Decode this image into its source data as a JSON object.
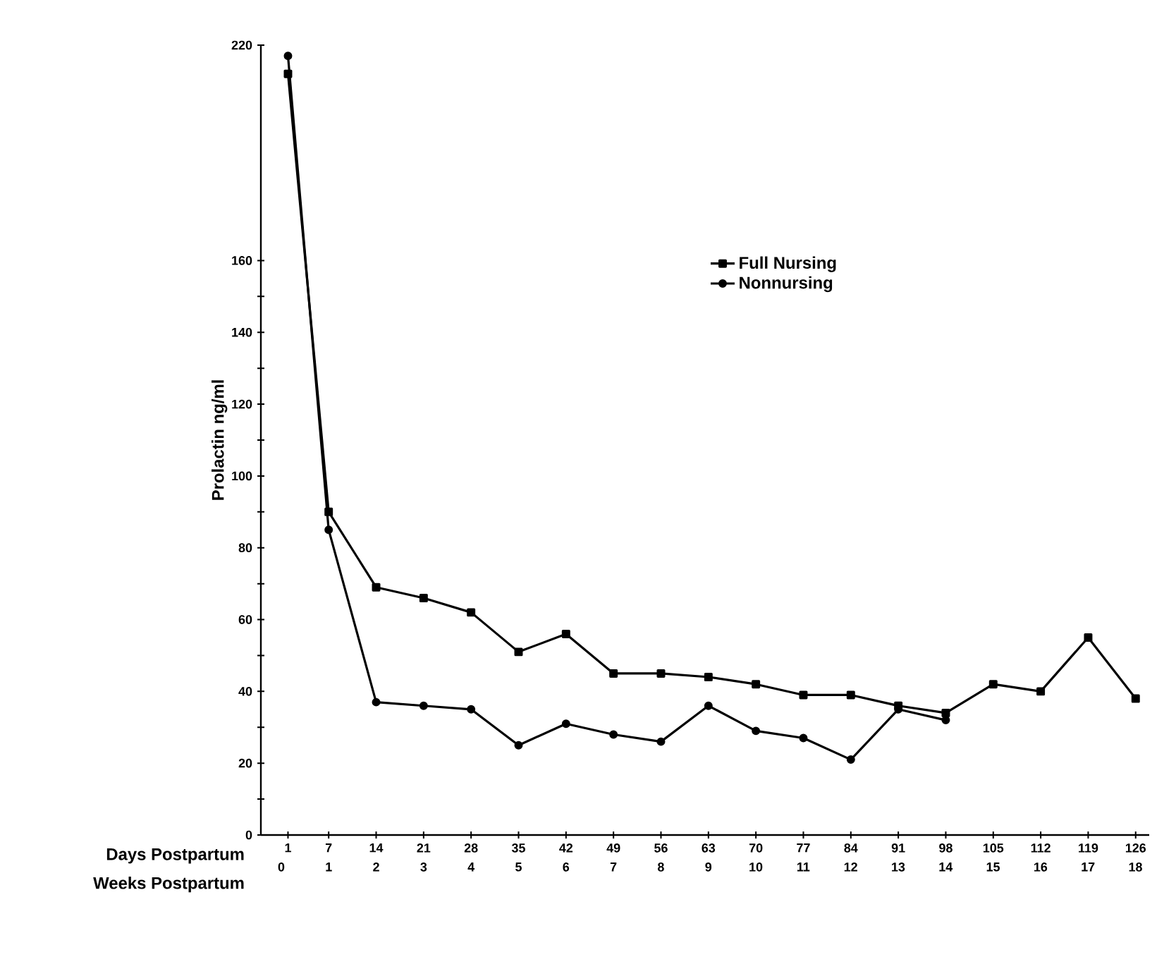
{
  "chart_data": {
    "type": "line",
    "xlabel": "Days Postpartum",
    "x2label": "Weeks Postpartum",
    "ylabel": "Prolactin    ng/ml",
    "x": [
      1,
      7,
      14,
      21,
      28,
      35,
      42,
      49,
      56,
      63,
      70,
      77,
      84,
      91,
      98,
      105,
      112,
      119,
      126
    ],
    "xlim": [
      -3,
      128
    ],
    "xticks": [
      1,
      7,
      14,
      21,
      28,
      35,
      42,
      49,
      56,
      63,
      70,
      77,
      84,
      91,
      98,
      105,
      112,
      119,
      126
    ],
    "x2lim": [
      -0.43,
      18.29
    ],
    "x2ticks": [
      0,
      1,
      2,
      3,
      4,
      5,
      6,
      7,
      8,
      9,
      10,
      11,
      12,
      13,
      14,
      15,
      16,
      17,
      18
    ],
    "ylim": [
      0,
      220
    ],
    "yticks": [
      0,
      {
        "value": 10,
        "label": null
      },
      20,
      {
        "value": 30,
        "label": null
      },
      40,
      {
        "value": 50,
        "label": null
      },
      60,
      {
        "value": 70,
        "label": null
      },
      80,
      {
        "value": 90,
        "label": null
      },
      100,
      {
        "value": 110,
        "label": null
      },
      120,
      {
        "value": 130,
        "label": null
      },
      140,
      {
        "value": 150,
        "label": null
      },
      160,
      220
    ],
    "legend": "top right",
    "series": [
      {
        "name": "Full Nursing",
        "color": "#000000",
        "marker": "square",
        "values": [
          212,
          90,
          69,
          66,
          62,
          51,
          56,
          45,
          45,
          44,
          42,
          39,
          39,
          36,
          34,
          42,
          40,
          55,
          38
        ]
      },
      {
        "name": "Nonnursing",
        "color": "#000000",
        "marker": "circle",
        "values": [
          217,
          85,
          37,
          36,
          35,
          25,
          31,
          28,
          26,
          36,
          29,
          27,
          21,
          35,
          32,
          null,
          null,
          null,
          null
        ]
      }
    ]
  }
}
